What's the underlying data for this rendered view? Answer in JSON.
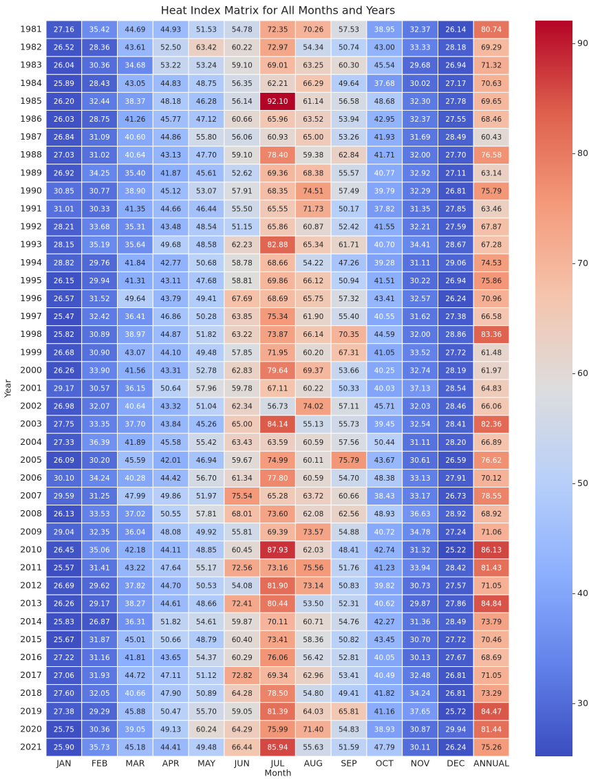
{
  "chart_data": {
    "type": "heatmap",
    "title": "Heat Index Matrix for All Months and Years",
    "x_label": "Month",
    "y_label": "Year",
    "categories": [
      "JAN",
      "FEB",
      "MAR",
      "APR",
      "MAY",
      "JUN",
      "JUL",
      "AUG",
      "SEP",
      "OCT",
      "NOV",
      "DEC",
      "ANNUAL"
    ],
    "rows": [
      "1981",
      "1982",
      "1983",
      "1984",
      "1985",
      "1986",
      "1987",
      "1988",
      "1989",
      "1990",
      "1991",
      "1992",
      "1993",
      "1994",
      "1995",
      "1996",
      "1997",
      "1998",
      "1999",
      "2000",
      "2001",
      "2002",
      "2003",
      "2004",
      "2005",
      "2006",
      "2007",
      "2008",
      "2009",
      "2010",
      "2011",
      "2012",
      "2013",
      "2014",
      "2015",
      "2016",
      "2017",
      "2018",
      "2019",
      "2020",
      "2021"
    ],
    "values": [
      [
        27.16,
        35.42,
        44.69,
        44.93,
        51.53,
        54.78,
        72.35,
        70.26,
        57.53,
        38.95,
        32.37,
        26.14,
        80.74
      ],
      [
        26.52,
        28.36,
        43.61,
        52.5,
        63.42,
        60.22,
        72.97,
        54.34,
        50.74,
        43.0,
        33.33,
        28.18,
        69.29
      ],
      [
        26.04,
        30.36,
        34.68,
        53.22,
        53.24,
        59.1,
        69.01,
        63.25,
        60.3,
        45.54,
        29.68,
        26.94,
        71.32
      ],
      [
        25.89,
        28.43,
        43.05,
        44.83,
        48.75,
        56.35,
        62.21,
        66.29,
        49.64,
        37.68,
        30.02,
        27.17,
        70.63
      ],
      [
        26.2,
        32.44,
        38.37,
        48.18,
        46.28,
        56.14,
        92.1,
        61.14,
        56.58,
        48.68,
        32.3,
        27.78,
        69.65
      ],
      [
        26.03,
        28.75,
        41.26,
        45.77,
        47.12,
        60.66,
        65.96,
        63.52,
        53.94,
        42.95,
        32.37,
        27.55,
        68.46
      ],
      [
        26.84,
        31.09,
        40.6,
        44.86,
        55.8,
        56.06,
        60.93,
        65.0,
        53.26,
        41.93,
        31.69,
        28.49,
        60.43
      ],
      [
        27.03,
        31.02,
        40.64,
        43.13,
        47.7,
        59.1,
        78.4,
        59.38,
        62.84,
        41.71,
        32.0,
        27.7,
        76.58
      ],
      [
        26.92,
        34.25,
        35.4,
        41.87,
        45.61,
        52.62,
        69.36,
        68.38,
        55.57,
        40.77,
        32.92,
        27.11,
        63.14
      ],
      [
        30.85,
        30.77,
        38.9,
        45.12,
        53.07,
        57.91,
        68.35,
        74.51,
        57.49,
        39.79,
        32.29,
        26.81,
        75.79
      ],
      [
        31.01,
        30.33,
        41.35,
        44.66,
        46.44,
        55.5,
        65.55,
        71.73,
        50.17,
        37.82,
        31.35,
        27.85,
        63.46
      ],
      [
        28.21,
        33.68,
        35.31,
        43.48,
        48.54,
        51.15,
        65.86,
        60.87,
        52.42,
        41.55,
        32.21,
        27.59,
        67.87
      ],
      [
        28.15,
        35.19,
        35.64,
        49.68,
        48.58,
        62.23,
        82.88,
        65.34,
        61.71,
        40.7,
        34.41,
        28.67,
        67.28
      ],
      [
        28.82,
        29.76,
        41.84,
        42.77,
        50.68,
        58.78,
        68.66,
        54.22,
        47.26,
        39.28,
        31.11,
        29.06,
        74.53
      ],
      [
        26.15,
        29.94,
        41.31,
        43.11,
        47.68,
        58.81,
        69.86,
        66.12,
        50.94,
        41.51,
        30.22,
        26.94,
        75.86
      ],
      [
        26.57,
        31.52,
        49.64,
        43.79,
        49.41,
        67.69,
        68.69,
        65.75,
        57.32,
        43.41,
        32.57,
        26.24,
        70.96
      ],
      [
        25.47,
        32.42,
        36.41,
        46.86,
        50.28,
        63.85,
        75.34,
        61.9,
        55.4,
        40.55,
        31.62,
        27.38,
        66.58
      ],
      [
        25.82,
        30.89,
        38.97,
        44.87,
        51.82,
        63.22,
        73.87,
        66.14,
        70.35,
        44.59,
        32.0,
        28.86,
        83.36
      ],
      [
        26.68,
        30.9,
        43.07,
        44.1,
        49.48,
        57.85,
        71.95,
        60.2,
        67.31,
        41.05,
        33.52,
        27.72,
        61.48
      ],
      [
        26.26,
        33.9,
        41.56,
        43.31,
        52.78,
        62.83,
        79.64,
        69.37,
        53.66,
        40.25,
        32.74,
        28.19,
        61.97
      ],
      [
        29.17,
        30.57,
        36.15,
        50.64,
        57.96,
        59.78,
        67.11,
        60.22,
        50.33,
        40.03,
        37.13,
        28.54,
        64.83
      ],
      [
        26.98,
        32.07,
        40.64,
        43.32,
        51.04,
        62.34,
        56.73,
        74.02,
        57.11,
        45.71,
        32.03,
        28.46,
        66.06
      ],
      [
        27.75,
        33.35,
        37.7,
        43.84,
        45.26,
        65.0,
        84.14,
        55.13,
        55.73,
        39.45,
        32.54,
        28.41,
        82.36
      ],
      [
        27.33,
        36.39,
        41.89,
        45.58,
        55.42,
        63.43,
        63.59,
        60.59,
        57.56,
        50.44,
        31.11,
        28.2,
        66.89
      ],
      [
        26.09,
        30.2,
        45.59,
        42.01,
        46.94,
        59.67,
        74.99,
        60.11,
        75.79,
        43.67,
        30.61,
        26.59,
        76.62
      ],
      [
        30.1,
        34.24,
        40.28,
        44.42,
        56.7,
        61.34,
        77.8,
        60.59,
        54.7,
        48.38,
        33.13,
        27.91,
        70.12
      ],
      [
        29.59,
        31.25,
        47.99,
        49.86,
        51.97,
        75.54,
        65.28,
        63.72,
        60.66,
        38.43,
        33.17,
        26.73,
        78.55
      ],
      [
        26.13,
        33.53,
        37.02,
        50.55,
        57.81,
        68.01,
        73.6,
        62.08,
        62.56,
        48.93,
        36.63,
        28.92,
        68.92
      ],
      [
        29.04,
        32.35,
        36.04,
        48.08,
        49.92,
        55.81,
        69.39,
        73.57,
        54.88,
        40.72,
        34.78,
        27.24,
        71.06
      ],
      [
        26.45,
        35.06,
        42.18,
        44.11,
        48.85,
        60.45,
        87.93,
        62.03,
        48.41,
        42.74,
        31.32,
        25.22,
        86.13
      ],
      [
        25.57,
        31.41,
        43.22,
        47.64,
        55.17,
        72.56,
        73.16,
        75.56,
        51.76,
        41.23,
        33.94,
        28.42,
        81.43
      ],
      [
        26.69,
        29.62,
        37.82,
        44.7,
        50.53,
        54.08,
        81.9,
        73.14,
        50.83,
        39.82,
        30.73,
        27.57,
        71.05
      ],
      [
        26.26,
        29.17,
        38.27,
        44.61,
        48.66,
        72.41,
        80.44,
        53.5,
        52.31,
        40.62,
        29.87,
        27.86,
        84.84
      ],
      [
        25.83,
        26.87,
        36.31,
        51.82,
        54.61,
        59.87,
        70.11,
        60.71,
        54.76,
        42.27,
        31.36,
        28.49,
        73.79
      ],
      [
        25.67,
        31.87,
        45.01,
        50.66,
        48.79,
        60.4,
        73.41,
        58.36,
        50.82,
        43.45,
        30.7,
        27.72,
        70.46
      ],
      [
        27.22,
        31.16,
        41.81,
        43.65,
        54.37,
        60.29,
        76.06,
        56.42,
        52.81,
        40.05,
        30.13,
        27.67,
        68.69
      ],
      [
        27.06,
        31.93,
        44.72,
        47.11,
        51.12,
        72.82,
        69.34,
        62.96,
        53.41,
        40.49,
        32.48,
        26.81,
        71.05
      ],
      [
        27.6,
        32.05,
        40.66,
        47.9,
        50.89,
        64.28,
        78.5,
        54.8,
        49.41,
        41.82,
        34.24,
        26.81,
        73.29
      ],
      [
        27.38,
        29.29,
        45.88,
        50.47,
        55.7,
        59.05,
        81.39,
        64.03,
        65.81,
        41.16,
        37.65,
        25.72,
        84.47
      ],
      [
        25.75,
        30.36,
        39.05,
        49.13,
        60.24,
        64.29,
        75.99,
        71.4,
        54.83,
        38.93,
        30.87,
        29.94,
        81.44
      ],
      [
        25.9,
        35.73,
        45.18,
        44.41,
        49.48,
        66.44,
        85.94,
        55.63,
        51.59,
        47.79,
        30.11,
        26.24,
        75.26
      ]
    ],
    "value_labels": [
      [
        "27.16",
        "35.42",
        "44.69",
        "44.93",
        "51.53",
        "54.78",
        "72.35",
        "70.26",
        "57.53",
        "38.95",
        "32.37",
        "26.14",
        "80.74"
      ],
      [
        "26.52",
        "28.36",
        "43.61",
        "52.50",
        "63.42",
        "60.22",
        "72.97",
        "54.34",
        "50.74",
        "43.00",
        "33.33",
        "28.18",
        "69.29"
      ],
      [
        "26.04",
        "30.36",
        "34.68",
        "53.22",
        "53.24",
        "59.10",
        "69.01",
        "63.25",
        "60.30",
        "45.54",
        "29.68",
        "26.94",
        "71.32"
      ],
      [
        "25.89",
        "28.43",
        "43.05",
        "44.83",
        "48.75",
        "56.35",
        "62.21",
        "66.29",
        "49.64",
        "37.68",
        "30.02",
        "27.17",
        "70.63"
      ],
      [
        "26.20",
        "32.44",
        "38.37",
        "48.18",
        "46.28",
        "56.14",
        "92.10",
        "61.14",
        "56.58",
        "48.68",
        "32.30",
        "27.78",
        "69.65"
      ],
      [
        "26.03",
        "28.75",
        "41.26",
        "45.77",
        "47.12",
        "60.66",
        "65.96",
        "63.52",
        "53.94",
        "42.95",
        "32.37",
        "27.55",
        "68.46"
      ],
      [
        "26.84",
        "31.09",
        "40.60",
        "44.86",
        "55.80",
        "56.06",
        "60.93",
        "65.00",
        "53.26",
        "41.93",
        "31.69",
        "28.49",
        "60.43"
      ],
      [
        "27.03",
        "31.02",
        "40.64",
        "43.13",
        "47.70",
        "59.10",
        "78.40",
        "59.38",
        "62.84",
        "41.71",
        "32.00",
        "27.70",
        "76.58"
      ],
      [
        "26.92",
        "34.25",
        "35.40",
        "41.87",
        "45.61",
        "52.62",
        "69.36",
        "68.38",
        "55.57",
        "40.77",
        "32.92",
        "27.11",
        "63.14"
      ],
      [
        "30.85",
        "30.77",
        "38.90",
        "45.12",
        "53.07",
        "57.91",
        "68.35",
        "74.51",
        "57.49",
        "39.79",
        "32.29",
        "26.81",
        "75.79"
      ],
      [
        "31.01",
        "30.33",
        "41.35",
        "44.66",
        "46.44",
        "55.50",
        "65.55",
        "71.73",
        "50.17",
        "37.82",
        "31.35",
        "27.85",
        "63.46"
      ],
      [
        "28.21",
        "33.68",
        "35.31",
        "43.48",
        "48.54",
        "51.15",
        "65.86",
        "60.87",
        "52.42",
        "41.55",
        "32.21",
        "27.59",
        "67.87"
      ],
      [
        "28.15",
        "35.19",
        "35.64",
        "49.68",
        "48.58",
        "62.23",
        "82.88",
        "65.34",
        "61.71",
        "40.70",
        "34.41",
        "28.67",
        "67.28"
      ],
      [
        "28.82",
        "29.76",
        "41.84",
        "42.77",
        "50.68",
        "58.78",
        "68.66",
        "54.22",
        "47.26",
        "39.28",
        "31.11",
        "29.06",
        "74.53"
      ],
      [
        "26.15",
        "29.94",
        "41.31",
        "43.11",
        "47.68",
        "58.81",
        "69.86",
        "66.12",
        "50.94",
        "41.51",
        "30.22",
        "26.94",
        "75.86"
      ],
      [
        "26.57",
        "31.52",
        "49.64",
        "43.79",
        "49.41",
        "67.69",
        "68.69",
        "65.75",
        "57.32",
        "43.41",
        "32.57",
        "26.24",
        "70.96"
      ],
      [
        "25.47",
        "32.42",
        "36.41",
        "46.86",
        "50.28",
        "63.85",
        "75.34",
        "61.90",
        "55.40",
        "40.55",
        "31.62",
        "27.38",
        "66.58"
      ],
      [
        "25.82",
        "30.89",
        "38.97",
        "44.87",
        "51.82",
        "63.22",
        "73.87",
        "66.14",
        "70.35",
        "44.59",
        "32.00",
        "28.86",
        "83.36"
      ],
      [
        "26.68",
        "30.90",
        "43.07",
        "44.10",
        "49.48",
        "57.85",
        "71.95",
        "60.20",
        "67.31",
        "41.05",
        "33.52",
        "27.72",
        "61.48"
      ],
      [
        "26.26",
        "33.90",
        "41.56",
        "43.31",
        "52.78",
        "62.83",
        "79.64",
        "69.37",
        "53.66",
        "40.25",
        "32.74",
        "28.19",
        "61.97"
      ],
      [
        "29.17",
        "30.57",
        "36.15",
        "50.64",
        "57.96",
        "59.78",
        "67.11",
        "60.22",
        "50.33",
        "40.03",
        "37.13",
        "28.54",
        "64.83"
      ],
      [
        "26.98",
        "32.07",
        "40.64",
        "43.32",
        "51.04",
        "62.34",
        "56.73",
        "74.02",
        "57.11",
        "45.71",
        "32.03",
        "28.46",
        "66.06"
      ],
      [
        "27.75",
        "33.35",
        "37.70",
        "43.84",
        "45.26",
        "65.00",
        "84.14",
        "55.13",
        "55.73",
        "39.45",
        "32.54",
        "28.41",
        "82.36"
      ],
      [
        "27.33",
        "36.39",
        "41.89",
        "45.58",
        "55.42",
        "63.43",
        "63.59",
        "60.59",
        "57.56",
        "50.44",
        "31.11",
        "28.20",
        "66.89"
      ],
      [
        "26.09",
        "30.20",
        "45.59",
        "42.01",
        "46.94",
        "59.67",
        "74.99",
        "60.11",
        "75.79",
        "43.67",
        "30.61",
        "26.59",
        "76.62"
      ],
      [
        "30.10",
        "34.24",
        "40.28",
        "44.42",
        "56.70",
        "61.34",
        "77.80",
        "60.59",
        "54.70",
        "48.38",
        "33.13",
        "27.91",
        "70.12"
      ],
      [
        "29.59",
        "31.25",
        "47.99",
        "49.86",
        "51.97",
        "75.54",
        "65.28",
        "63.72",
        "60.66",
        "38.43",
        "33.17",
        "26.73",
        "78.55"
      ],
      [
        "26.13",
        "33.53",
        "37.02",
        "50.55",
        "57.81",
        "68.01",
        "73.60",
        "62.08",
        "62.56",
        "48.93",
        "36.63",
        "28.92",
        "68.92"
      ],
      [
        "29.04",
        "32.35",
        "36.04",
        "48.08",
        "49.92",
        "55.81",
        "69.39",
        "73.57",
        "54.88",
        "40.72",
        "34.78",
        "27.24",
        "71.06"
      ],
      [
        "26.45",
        "35.06",
        "42.18",
        "44.11",
        "48.85",
        "60.45",
        "87.93",
        "62.03",
        "48.41",
        "42.74",
        "31.32",
        "25.22",
        "86.13"
      ],
      [
        "25.57",
        "31.41",
        "43.22",
        "47.64",
        "55.17",
        "72.56",
        "73.16",
        "75.56",
        "51.76",
        "41.23",
        "33.94",
        "28.42",
        "81.43"
      ],
      [
        "26.69",
        "29.62",
        "37.82",
        "44.70",
        "50.53",
        "54.08",
        "81.90",
        "73.14",
        "50.83",
        "39.82",
        "30.73",
        "27.57",
        "71.05"
      ],
      [
        "26.26",
        "29.17",
        "38.27",
        "44.61",
        "48.66",
        "72.41",
        "80.44",
        "53.50",
        "52.31",
        "40.62",
        "29.87",
        "27.86",
        "84.84"
      ],
      [
        "25.83",
        "26.87",
        "36.31",
        "51.82",
        "54.61",
        "59.87",
        "70.11",
        "60.71",
        "54.76",
        "42.27",
        "31.36",
        "28.49",
        "73.79"
      ],
      [
        "25.67",
        "31.87",
        "45.01",
        "50.66",
        "48.79",
        "60.40",
        "73.41",
        "58.36",
        "50.82",
        "43.45",
        "30.70",
        "27.72",
        "70.46"
      ],
      [
        "27.22",
        "31.16",
        "41.81",
        "43.65",
        "54.37",
        "60.29",
        "76.06",
        "56.42",
        "52.81",
        "40.05",
        "30.13",
        "27.67",
        "68.69"
      ],
      [
        "27.06",
        "31.93",
        "44.72",
        "47.11",
        "51.12",
        "72.82",
        "69.34",
        "62.96",
        "53.41",
        "40.49",
        "32.48",
        "26.81",
        "71.05"
      ],
      [
        "27.60",
        "32.05",
        "40.66",
        "47.90",
        "50.89",
        "64.28",
        "78.50",
        "54.80",
        "49.41",
        "41.82",
        "34.24",
        "26.81",
        "73.29"
      ],
      [
        "27.38",
        "29.29",
        "45.88",
        "50.47",
        "55.70",
        "59.05",
        "81.39",
        "64.03",
        "65.81",
        "41.16",
        "37.65",
        "25.72",
        "84.47"
      ],
      [
        "25.75",
        "30.36",
        "39.05",
        "49.13",
        "60.24",
        "64.29",
        "75.99",
        "71.40",
        "54.83",
        "38.93",
        "30.87",
        "29.94",
        "81.44"
      ],
      [
        "25.90",
        "35.73",
        "45.18",
        "44.41",
        "49.48",
        "66.44",
        "85.94",
        "55.63",
        "51.59",
        "47.79",
        "30.11",
        "26.24",
        "75.26"
      ]
    ],
    "zlim": [
      25.22,
      92.1
    ],
    "zticks": [
      30,
      40,
      50,
      60,
      70,
      80,
      90
    ],
    "colormap": [
      "#3b4cc0",
      "#6282ea",
      "#8db0fe",
      "#b8d0f9",
      "#dddddd",
      "#f5c4ad",
      "#f49a7b",
      "#de604d",
      "#b40426"
    ]
  }
}
